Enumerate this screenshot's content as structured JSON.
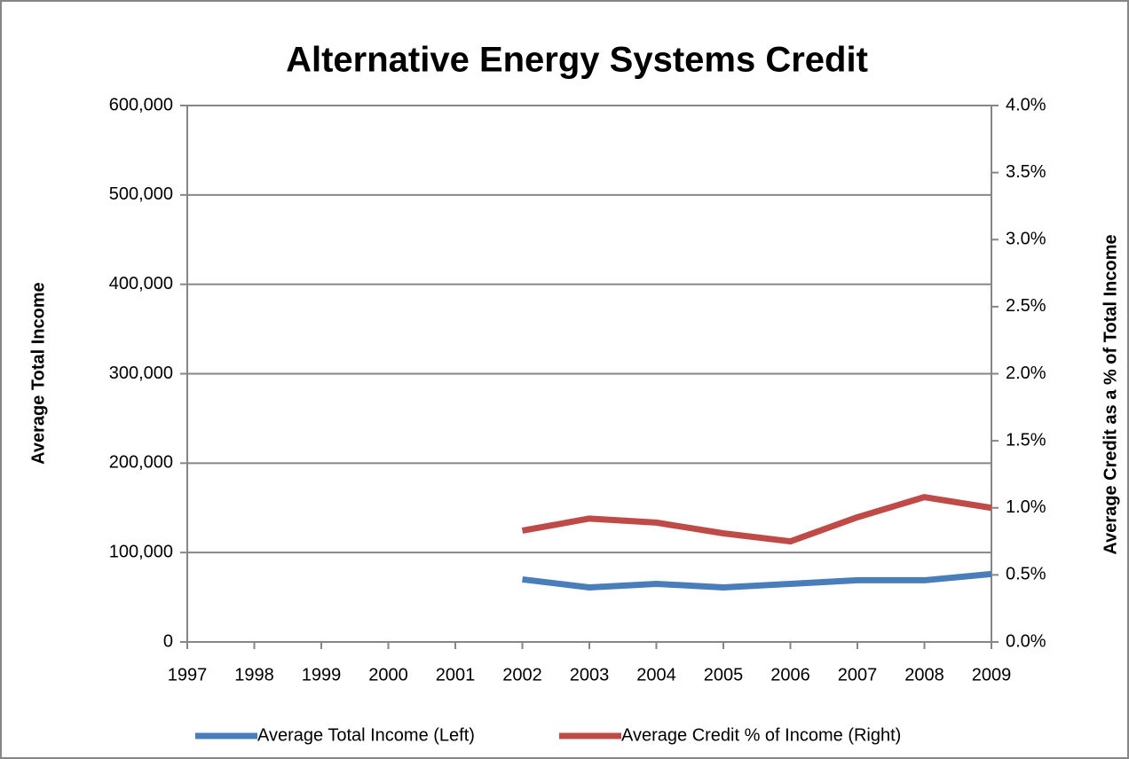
{
  "chart_data": {
    "type": "line",
    "title": "Alternative Energy Systems Credit",
    "y_label": "Average Total  Income",
    "y2_label": "Average Credit as a % of Total Income",
    "categories": [
      "1997",
      "1998",
      "1999",
      "2000",
      "2001",
      "2002",
      "2003",
      "2004",
      "2005",
      "2006",
      "2007",
      "2008",
      "2009"
    ],
    "series": [
      {
        "name": "Average Total Income (Left)",
        "color": "#4a7ebb",
        "values": [
          null,
          null,
          null,
          null,
          null,
          70000,
          61000,
          65000,
          61000,
          65000,
          69000,
          69000,
          76000
        ]
      },
      {
        "name": "Average Credit % of Income (Right)",
        "color": "#be4b48",
        "axis": "y2",
        "values": [
          null,
          null,
          null,
          null,
          null,
          0.83,
          0.92,
          0.89,
          0.81,
          0.75,
          0.93,
          1.08,
          1.0
        ]
      }
    ],
    "ylim": [
      0,
      600000
    ],
    "yticks": [
      0,
      {
        "value": 100000,
        "label": "100,000"
      },
      {
        "value": 200000,
        "label": "200,000"
      },
      {
        "value": 300000,
        "label": "300,000"
      },
      {
        "value": 400000,
        "label": "400,000"
      },
      {
        "value": 500000,
        "label": "500,000"
      },
      {
        "value": 600000,
        "label": "600,000"
      }
    ],
    "y2lim": [
      0,
      4
    ],
    "y2ticks": [
      {
        "value": 0,
        "label": "0.0%"
      },
      {
        "value": 0.5,
        "label": "0.5%"
      },
      {
        "value": 1,
        "label": "1.0%"
      },
      {
        "value": 1.5,
        "label": "1.5%"
      },
      {
        "value": 2,
        "label": "2.0%"
      },
      {
        "value": 2.5,
        "label": "2.5%"
      },
      {
        "value": 3,
        "label": "3.0%"
      },
      {
        "value": 3.5,
        "label": "3.5%"
      },
      {
        "value": 4,
        "label": "4.0%"
      }
    ],
    "grid": true,
    "legend": "bottom"
  }
}
